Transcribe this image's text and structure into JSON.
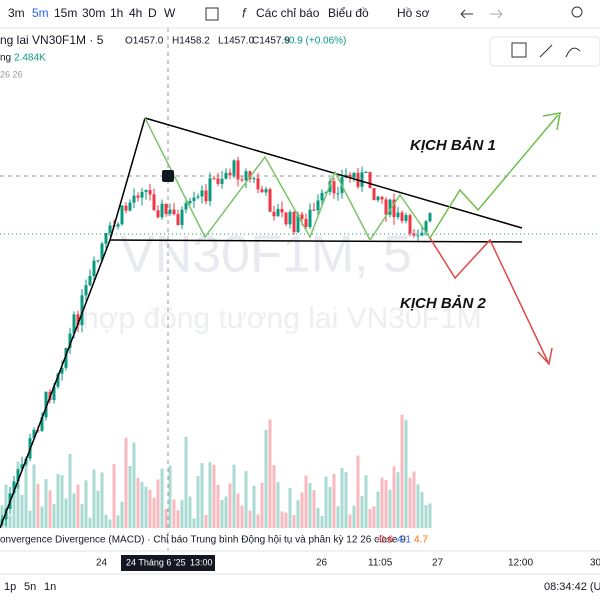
{
  "toolbar": {
    "intervals": [
      "3m",
      "5m",
      "15m",
      "30m",
      "1h",
      "4h",
      "D",
      "W"
    ],
    "indicators": "Các chỉ báo",
    "chart": "Biểu đồ",
    "profile": "Hồ sơ"
  },
  "legend": {
    "symbol": "ng lai VN30F1M · 5",
    "open": "O1457.0",
    "high": "H1458.2",
    "low": "L1457.0",
    "close": "C1457.9",
    "change": "+0.9 (+0.06%)",
    "volume_name": "ng",
    "volume": "2.484K",
    "params": "26 26"
  },
  "annotations": {
    "scenario1": "KỊCH BẢN 1",
    "scenario2": "KỊCH BẢN 2"
  },
  "watermark": {
    "symbol": "VN30F1M, 5",
    "description": "hợp đồng tương lai VN30F1M"
  },
  "indicator": {
    "label": "onvergence Divergence (MACD) · Chỉ báo Trung bình Động hội tụ và phân kỳ 12 26 close 9",
    "values": [
      "-0.6",
      "4.1",
      "4.7"
    ]
  },
  "time_axis": {
    "labels": [
      "24",
      "26",
      "11:05",
      "27",
      "12:00",
      "30"
    ],
    "cursor_date": "24 Tháng 6 '25",
    "cursor_time": "13:00"
  },
  "bottom_bar": {
    "ranges": [
      "1p",
      "5n",
      "1n"
    ],
    "clock": "08:34:42 (UT"
  }
}
